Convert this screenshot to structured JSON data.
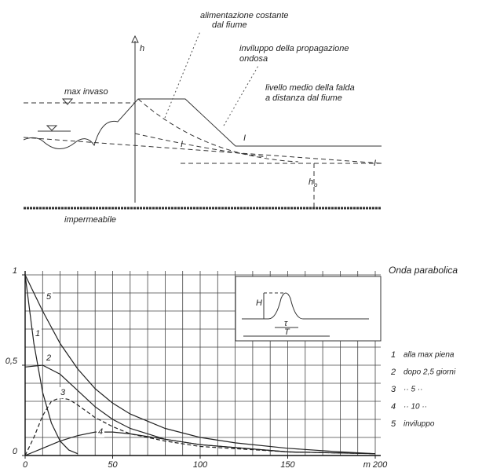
{
  "diagram": {
    "labels": {
      "feed": [
        "alimentazione costante",
        "dal fiume"
      ],
      "h": "h",
      "envelope": [
        "inviluppo della propagazione",
        "ondosa"
      ],
      "mean_level": [
        "livello medio della falda",
        "a distanza dal fiume"
      ],
      "max_level": "max invaso",
      "h0": "h",
      "h0_sub": "o",
      "impermeable": "impermeabile",
      "curve_mark_1": "I",
      "curve_mark_2": "I",
      "curve_mark_3": "I"
    }
  },
  "chart_data": {
    "type": "line",
    "title": "Onda parabolica",
    "xlim": [
      0,
      200
    ],
    "ylim": [
      0,
      1
    ],
    "xticks": [
      0,
      50,
      100,
      150,
      {
        "value": 200,
        "label": "m 200"
      }
    ],
    "yticks": [
      0,
      {
        "value": 0.5,
        "label": "0,5"
      },
      1
    ],
    "grid": {
      "x_step": 10,
      "y_step": 0.1
    },
    "inset": {
      "H": "H",
      "tau": "τ",
      "T": "T"
    },
    "series": [
      {
        "label": "1",
        "name": "alla max piena",
        "color": "#222",
        "dashed": false,
        "x": [
          0,
          5,
          10,
          15,
          20,
          25,
          30
        ],
        "values": [
          1,
          0.62,
          0.35,
          0.18,
          0.08,
          0.03,
          0.01
        ]
      },
      {
        "label": "2",
        "name": "dopo 2,5 giorni",
        "color": "#222",
        "dashed": false,
        "x": [
          0,
          10,
          20,
          30,
          40,
          50,
          60,
          80,
          100,
          150,
          200
        ],
        "values": [
          0.49,
          0.5,
          0.45,
          0.36,
          0.27,
          0.2,
          0.15,
          0.09,
          0.06,
          0.02,
          0.01
        ]
      },
      {
        "label": "3",
        "name": "··   5   ··",
        "color": "#222",
        "dashed": true,
        "x": [
          0,
          5,
          10,
          15,
          20,
          25,
          30,
          40,
          50,
          60,
          80,
          100,
          150,
          200
        ],
        "values": [
          0,
          0.1,
          0.22,
          0.3,
          0.32,
          0.31,
          0.28,
          0.21,
          0.16,
          0.12,
          0.08,
          0.05,
          0.02,
          0.01
        ]
      },
      {
        "label": "4",
        "name": "··   10   ··",
        "color": "#222",
        "dashed": false,
        "x": [
          0,
          10,
          20,
          30,
          40,
          50,
          60,
          80,
          100,
          150,
          200
        ],
        "values": [
          0,
          0.04,
          0.08,
          0.11,
          0.13,
          0.13,
          0.12,
          0.09,
          0.06,
          0.02,
          0.01
        ]
      },
      {
        "label": "5",
        "name": "inviluppo",
        "color": "#222",
        "dashed": false,
        "x": [
          0,
          10,
          20,
          30,
          40,
          50,
          60,
          80,
          100,
          120,
          150,
          180,
          200
        ],
        "values": [
          1,
          0.8,
          0.62,
          0.48,
          0.37,
          0.29,
          0.23,
          0.15,
          0.1,
          0.07,
          0.04,
          0.02,
          0.01
        ]
      }
    ]
  }
}
